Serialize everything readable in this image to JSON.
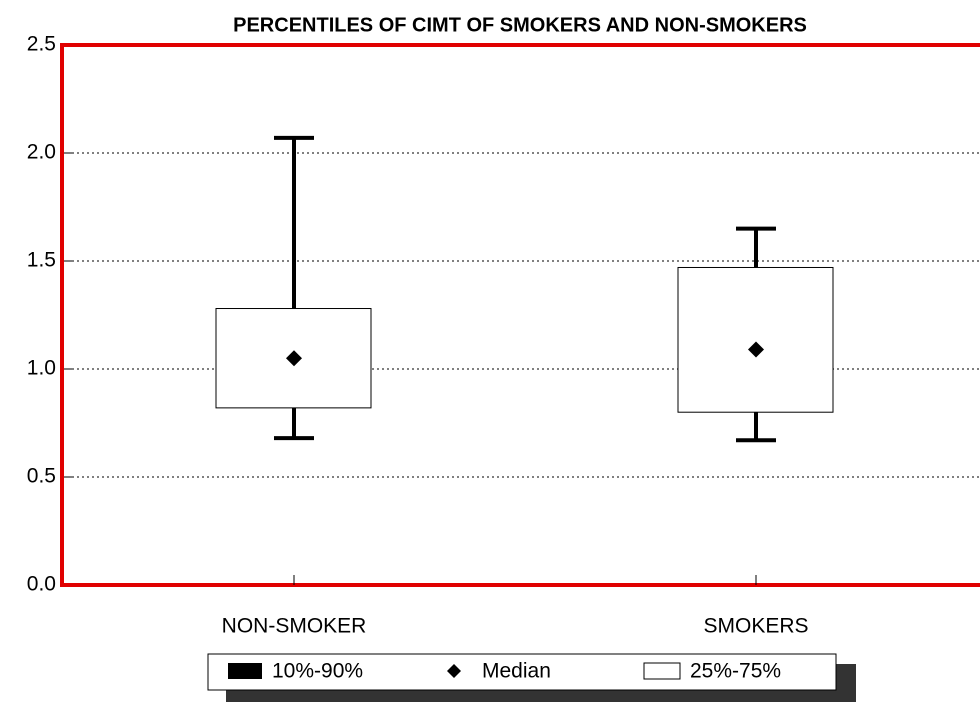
{
  "chart_data": {
    "type": "box",
    "title": "PERCENTILES OF CIMT OF SMOKERS AND NON-SMOKERS",
    "categories": [
      "NON-SMOKER",
      "SMOKERS"
    ],
    "p10": [
      0.68,
      0.67
    ],
    "q1": [
      0.82,
      0.8
    ],
    "median": [
      1.05,
      1.09
    ],
    "q3": [
      1.28,
      1.47
    ],
    "p90": [
      2.07,
      1.65
    ],
    "ylim": [
      0,
      2.5
    ],
    "yticks": [
      {
        "value": 0,
        "label": "0.0"
      },
      0.5,
      {
        "value": 1,
        "label": "1.0"
      },
      1.5,
      {
        "value": 2,
        "label": "2.0"
      },
      2.5
    ],
    "grid": true,
    "axis_color": "#e00000",
    "legend": [
      "10%-90%",
      "Median",
      "25%-75%"
    ]
  }
}
